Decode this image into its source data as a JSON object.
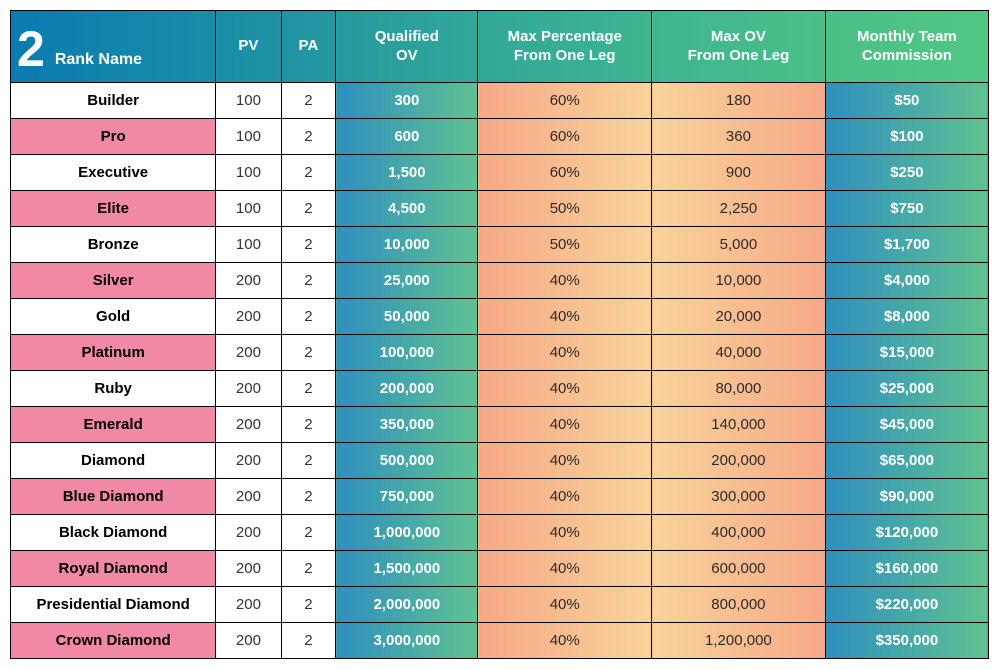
{
  "table": {
    "badge_number": "2",
    "columns": [
      "Rank Name",
      "PV",
      "PA",
      "Qualified OV",
      "Max Percentage From One Leg",
      "Max OV From One Leg",
      "Monthly Team Commission"
    ],
    "col_header_labels": {
      "rank": "Rank Name",
      "pv": "PV",
      "pa": "PA",
      "qov_l1": "Qualified",
      "qov_l2": "OV",
      "maxp_l1": "Max Percentage",
      "maxp_l2": "From One Leg",
      "maxov_l1": "Max OV",
      "maxov_l2": "From One Leg",
      "comm_l1": "Monthly Team",
      "comm_l2": "Commission"
    },
    "header_gradient_stops": [
      "#0a7bb0",
      "#1286ac",
      "#1a8da8",
      "#1f93a4",
      "#2aa09c",
      "#39af93",
      "#45bb8b",
      "#51c683"
    ],
    "qov_gradient": {
      "start": "#2e8fbf",
      "end": "#5fc291"
    },
    "maxp_gradient": {
      "start": "#f6a886",
      "end": "#f8d39a"
    },
    "maxov_gradient": {
      "start": "#f8d39a",
      "end": "#f6a886"
    },
    "comm_gradient": {
      "start": "#2e8fbf",
      "end": "#5fc291"
    },
    "rank_pink_color": "#f189a5",
    "rank_white_color": "#ffffff",
    "border_color": "#000000",
    "text_color": "#333333",
    "rows": [
      {
        "rank": "Builder",
        "rank_bg": "white",
        "pv": "100",
        "pa": "2",
        "qov": "300",
        "maxp": "60%",
        "maxov": "180",
        "comm": "$50"
      },
      {
        "rank": "Pro",
        "rank_bg": "pink",
        "pv": "100",
        "pa": "2",
        "qov": "600",
        "maxp": "60%",
        "maxov": "360",
        "comm": "$100"
      },
      {
        "rank": "Executive",
        "rank_bg": "white",
        "pv": "100",
        "pa": "2",
        "qov": "1,500",
        "maxp": "60%",
        "maxov": "900",
        "comm": "$250"
      },
      {
        "rank": "Elite",
        "rank_bg": "pink",
        "pv": "100",
        "pa": "2",
        "qov": "4,500",
        "maxp": "50%",
        "maxov": "2,250",
        "comm": "$750"
      },
      {
        "rank": "Bronze",
        "rank_bg": "white",
        "pv": "100",
        "pa": "2",
        "qov": "10,000",
        "maxp": "50%",
        "maxov": "5,000",
        "comm": "$1,700"
      },
      {
        "rank": "Silver",
        "rank_bg": "pink",
        "pv": "200",
        "pa": "2",
        "qov": "25,000",
        "maxp": "40%",
        "maxov": "10,000",
        "comm": "$4,000"
      },
      {
        "rank": "Gold",
        "rank_bg": "white",
        "pv": "200",
        "pa": "2",
        "qov": "50,000",
        "maxp": "40%",
        "maxov": "20,000",
        "comm": "$8,000"
      },
      {
        "rank": "Platinum",
        "rank_bg": "pink",
        "pv": "200",
        "pa": "2",
        "qov": "100,000",
        "maxp": "40%",
        "maxov": "40,000",
        "comm": "$15,000"
      },
      {
        "rank": "Ruby",
        "rank_bg": "white",
        "pv": "200",
        "pa": "2",
        "qov": "200,000",
        "maxp": "40%",
        "maxov": "80,000",
        "comm": "$25,000"
      },
      {
        "rank": "Emerald",
        "rank_bg": "pink",
        "pv": "200",
        "pa": "2",
        "qov": "350,000",
        "maxp": "40%",
        "maxov": "140,000",
        "comm": "$45,000"
      },
      {
        "rank": "Diamond",
        "rank_bg": "white",
        "pv": "200",
        "pa": "2",
        "qov": "500,000",
        "maxp": "40%",
        "maxov": "200,000",
        "comm": "$65,000"
      },
      {
        "rank": "Blue Diamond",
        "rank_bg": "pink",
        "pv": "200",
        "pa": "2",
        "qov": "750,000",
        "maxp": "40%",
        "maxov": "300,000",
        "comm": "$90,000"
      },
      {
        "rank": "Black Diamond",
        "rank_bg": "white",
        "pv": "200",
        "pa": "2",
        "qov": "1,000,000",
        "maxp": "40%",
        "maxov": "400,000",
        "comm": "$120,000"
      },
      {
        "rank": "Royal Diamond",
        "rank_bg": "pink",
        "pv": "200",
        "pa": "2",
        "qov": "1,500,000",
        "maxp": "40%",
        "maxov": "600,000",
        "comm": "$160,000"
      },
      {
        "rank": "Presidential Diamond",
        "rank_bg": "white",
        "pv": "200",
        "pa": "2",
        "qov": "2,000,000",
        "maxp": "40%",
        "maxov": "800,000",
        "comm": "$220,000"
      },
      {
        "rank": "Crown Diamond",
        "rank_bg": "pink",
        "pv": "200",
        "pa": "2",
        "qov": "3,000,000",
        "maxp": "40%",
        "maxov": "1,200,000",
        "comm": "$350,000"
      }
    ]
  }
}
